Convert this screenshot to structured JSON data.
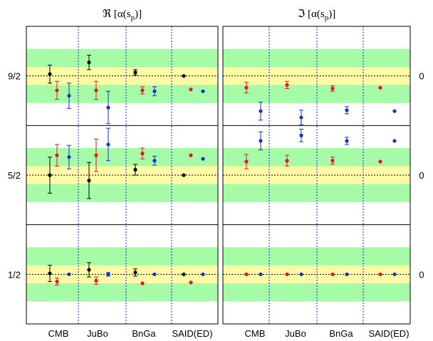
{
  "chart_data": {
    "type": "scatter",
    "panel_titles": [
      "ℜ [α(s",
      "ℑ [α(s"
    ],
    "title_subscript": "p",
    "title_suffix": ")]",
    "groups": [
      "CMB",
      "JuBo",
      "BnGa",
      "SAID(ED)"
    ],
    "row_labels_left": [
      "9/2",
      "5/2",
      "1/2"
    ],
    "row_labels_right": [
      "0",
      "0",
      "0"
    ],
    "colors": {
      "black": "#000000",
      "red": "#e8141e",
      "blue": "#1432c8",
      "yellow_band": "#fdfaa6",
      "green_band": "#a6fba6",
      "separator": "#1e1ee8"
    },
    "bands": {
      "yellow_halfwidth": 1,
      "green_halfwidth": 3
    },
    "ylim": [
      -5.5,
      5.5
    ],
    "series": [
      {
        "name": "",
        "color": "black",
        "real": {
          "9/2": [
            [
              0.2,
              1.0
            ],
            [
              1.5,
              0.8
            ],
            [
              0.4,
              0.3
            ],
            [
              0.0,
              0
            ]
          ],
          "5/2": [
            [
              0.0,
              2.0
            ],
            [
              -0.6,
              2.0
            ],
            [
              0.6,
              0.6
            ],
            [
              0.0,
              0
            ]
          ],
          "1/2": [
            [
              0.1,
              0.9
            ],
            [
              0.5,
              0.8
            ],
            [
              0.2,
              0.4
            ],
            [
              0.0,
              0
            ]
          ]
        }
      },
      {
        "name": "",
        "color": "red",
        "real": {
          "9/2": [
            [
              -1.6,
              1.0
            ],
            [
              -1.6,
              1.0
            ],
            [
              -1.6,
              0.4
            ],
            [
              -1.5,
              0
            ]
          ],
          "5/2": [
            [
              2.2,
              1.2
            ],
            [
              2.2,
              1.8
            ],
            [
              2.4,
              0.6
            ],
            [
              2.2,
              0
            ]
          ],
          "1/2": [
            [
              -0.8,
              0.4
            ],
            [
              -0.7,
              0.4
            ],
            [
              -1.0,
              0
            ],
            [
              -0.9,
              0
            ]
          ]
        },
        "imag": {
          "9/2": [
            [
              -1.3,
              0.6
            ],
            [
              -1.0,
              0.4
            ],
            [
              -1.4,
              0.3
            ],
            [
              -1.3,
              0
            ]
          ],
          "5/2": [
            [
              1.5,
              0.8
            ],
            [
              1.6,
              0.6
            ],
            [
              1.6,
              0.4
            ],
            [
              1.5,
              0
            ]
          ],
          "1/2": [
            [
              0.0,
              0
            ],
            [
              0.0,
              0
            ],
            [
              0.0,
              0
            ],
            [
              0.0,
              0
            ]
          ]
        }
      },
      {
        "name": "",
        "color": "blue",
        "real": {
          "9/2": [
            [
              -2.2,
              1.4
            ],
            [
              -3.5,
              1.8
            ],
            [
              -1.7,
              0.5
            ],
            [
              -1.7,
              0
            ]
          ],
          "5/2": [
            [
              2.0,
              1.3
            ],
            [
              3.4,
              1.8
            ],
            [
              1.6,
              0.5
            ],
            [
              1.8,
              0
            ]
          ],
          "1/2": [
            [
              0.0,
              0
            ],
            [
              0.0,
              0.2
            ],
            [
              0.0,
              0
            ],
            [
              0.0,
              0
            ]
          ]
        },
        "imag": {
          "9/2": [
            [
              -3.9,
              1.0
            ],
            [
              -4.6,
              0.8
            ],
            [
              -3.8,
              0.4
            ],
            [
              -3.9,
              0
            ]
          ],
          "5/2": [
            [
              3.8,
              1.0
            ],
            [
              4.4,
              0.7
            ],
            [
              3.8,
              0.4
            ],
            [
              3.8,
              0
            ]
          ],
          "1/2": [
            [
              0.0,
              0
            ],
            [
              0.0,
              0
            ],
            [
              0.0,
              0
            ],
            [
              0.0,
              0
            ]
          ]
        }
      }
    ]
  }
}
